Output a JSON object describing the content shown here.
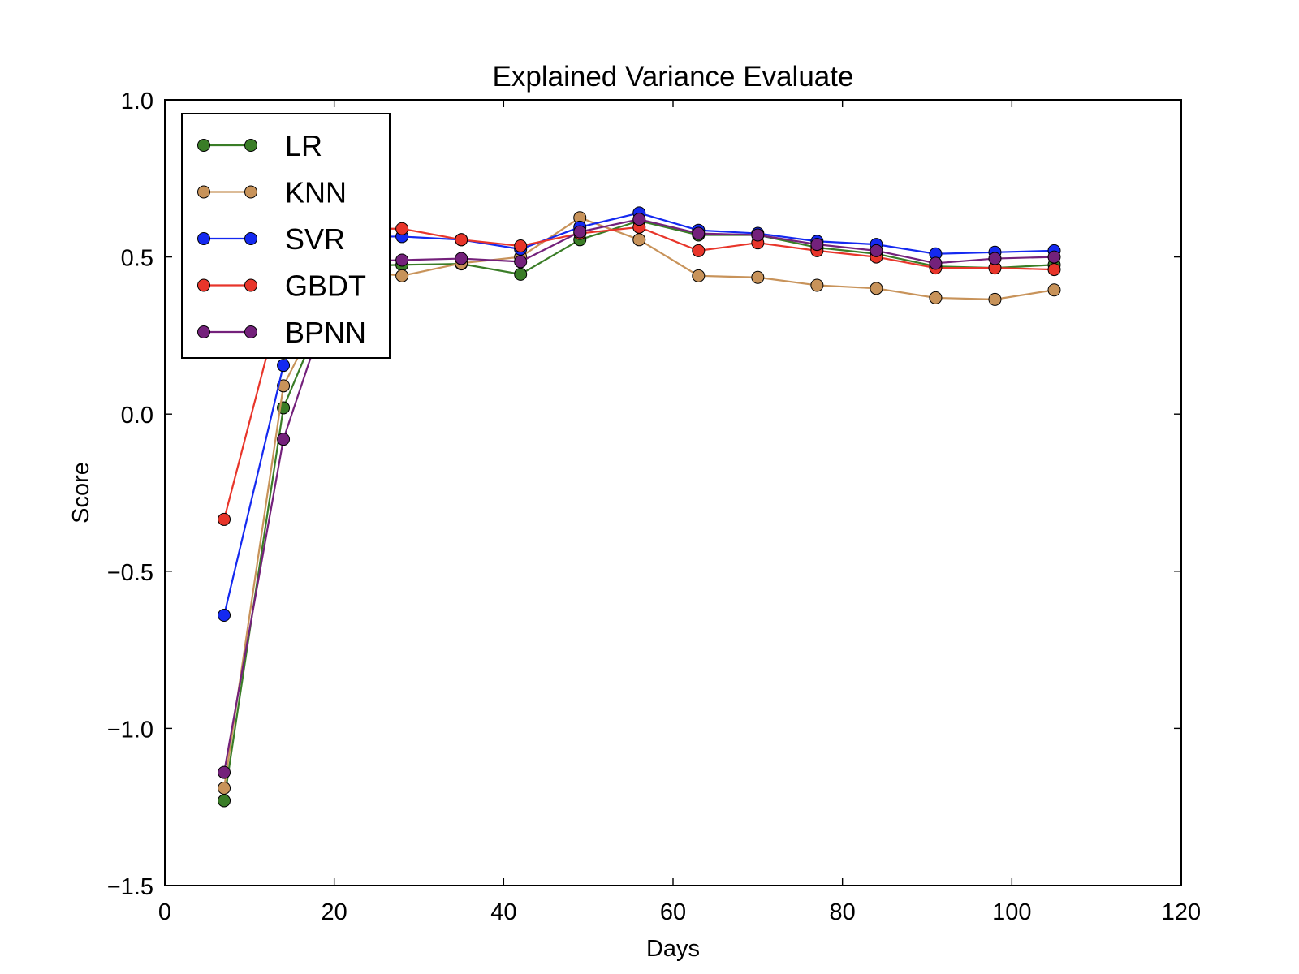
{
  "chart_data": {
    "type": "line",
    "title": "Explained Variance Evaluate",
    "xlabel": "Days",
    "ylabel": "Score",
    "xlim": [
      0,
      120
    ],
    "ylim": [
      -1.5,
      1.0
    ],
    "xticks": [
      0,
      20,
      40,
      60,
      80,
      100,
      120
    ],
    "xtick_labels": [
      "0",
      "20",
      "40",
      "60",
      "80",
      "100",
      "120"
    ],
    "yticks": [
      -1.5,
      -1.0,
      -0.5,
      0.0,
      0.5,
      1.0
    ],
    "ytick_labels": [
      "−1.5",
      "−1.0",
      "−0.5",
      "0.0",
      "0.5",
      "1.0"
    ],
    "grid": false,
    "legend_placement": "top-left",
    "x": [
      7,
      14,
      21,
      28,
      35,
      42,
      49,
      56,
      63,
      70,
      77,
      84,
      91,
      98,
      105
    ],
    "series": [
      {
        "name": "LR",
        "color": "#3a7d27",
        "values": [
          -1.23,
          0.02,
          0.47,
          0.475,
          0.478,
          0.445,
          0.555,
          0.615,
          0.57,
          0.57,
          0.53,
          0.51,
          0.47,
          0.465,
          0.475
        ]
      },
      {
        "name": "KNN",
        "color": "#c8935a",
        "values": [
          -1.19,
          0.09,
          0.46,
          0.44,
          0.48,
          0.5,
          0.625,
          0.555,
          0.44,
          0.435,
          0.41,
          0.4,
          0.37,
          0.365,
          0.395
        ]
      },
      {
        "name": "SVR",
        "color": "#1429f0",
        "values": [
          -0.64,
          0.155,
          0.565,
          0.565,
          0.555,
          0.525,
          0.595,
          0.64,
          0.585,
          0.575,
          0.55,
          0.54,
          0.51,
          0.515,
          0.52
        ]
      },
      {
        "name": "GBDT",
        "color": "#e8352a",
        "values": [
          -0.335,
          0.39,
          0.59,
          0.59,
          0.555,
          0.535,
          0.575,
          0.595,
          0.52,
          0.545,
          0.52,
          0.5,
          0.465,
          0.465,
          0.46
        ]
      },
      {
        "name": "BPNN",
        "color": "#74217b",
        "values": [
          -1.14,
          -0.08,
          0.485,
          0.49,
          0.495,
          0.485,
          0.58,
          0.62,
          0.575,
          0.57,
          0.54,
          0.52,
          0.48,
          0.495,
          0.5
        ]
      }
    ]
  }
}
